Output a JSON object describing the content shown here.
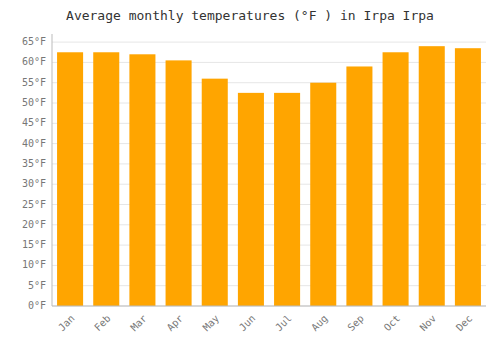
{
  "chart_data": {
    "type": "bar",
    "title": "Average monthly temperatures (°F ) in Irpa Irpa",
    "categories": [
      "Jan",
      "Feb",
      "Mar",
      "Apr",
      "May",
      "Jun",
      "Jul",
      "Aug",
      "Sep",
      "Oct",
      "Nov",
      "Dec"
    ],
    "values": [
      62.5,
      62.5,
      62.0,
      60.5,
      56.0,
      52.5,
      52.5,
      55.0,
      59.0,
      62.5,
      64.0,
      63.5
    ],
    "color": "#FFA500",
    "ylim": [
      0,
      67
    ],
    "yticks": [
      {
        "value": 0,
        "label": "0°F"
      },
      {
        "value": 5,
        "label": "5°F"
      },
      {
        "value": 10,
        "label": "10°F"
      },
      {
        "value": 15,
        "label": "15°F"
      },
      {
        "value": 20,
        "label": "20°F"
      },
      {
        "value": 25,
        "label": "25°F"
      },
      {
        "value": 30,
        "label": "30°F"
      },
      {
        "value": 35,
        "label": "35°F"
      },
      {
        "value": 40,
        "label": "40°F"
      },
      {
        "value": 45,
        "label": "45°F"
      },
      {
        "value": 50,
        "label": "50°F"
      },
      {
        "value": 55,
        "label": "55°F"
      },
      {
        "value": 60,
        "label": "60°F"
      },
      {
        "value": 65,
        "label": "65°F"
      }
    ],
    "grid": true
  }
}
